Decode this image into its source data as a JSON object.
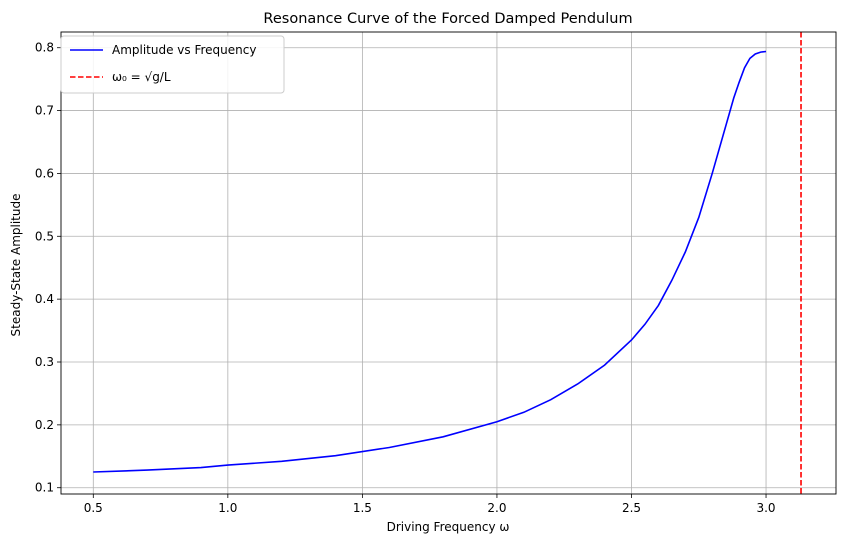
{
  "chart_data": {
    "type": "line",
    "title": "Resonance Curve of the Forced Damped Pendulum",
    "xlabel": "Driving Frequency ω",
    "ylabel": "Steady-State Amplitude",
    "xlim": [
      0.38,
      3.26
    ],
    "ylim": [
      0.09,
      0.825
    ],
    "xticks": [
      "0.5",
      "1.0",
      "1.5",
      "2.0",
      "2.5",
      "3.0"
    ],
    "yticks": [
      "0.1",
      "0.2",
      "0.3",
      "0.4",
      "0.5",
      "0.6",
      "0.7",
      "0.8"
    ],
    "grid": true,
    "legend_position": "top-left",
    "series": [
      {
        "name": "Amplitude vs Frequency",
        "color": "#0000ff",
        "style": "solid",
        "x": [
          0.5,
          0.7,
          0.9,
          1.0,
          1.2,
          1.4,
          1.6,
          1.8,
          2.0,
          2.1,
          2.2,
          2.3,
          2.4,
          2.5,
          2.55,
          2.6,
          2.65,
          2.7,
          2.75,
          2.8,
          2.85,
          2.88,
          2.9,
          2.92,
          2.94,
          2.96,
          2.98,
          3.0
        ],
        "y": [
          0.125,
          0.128,
          0.132,
          0.136,
          0.142,
          0.151,
          0.164,
          0.181,
          0.205,
          0.22,
          0.24,
          0.265,
          0.295,
          0.335,
          0.36,
          0.39,
          0.43,
          0.475,
          0.53,
          0.6,
          0.675,
          0.72,
          0.745,
          0.768,
          0.783,
          0.79,
          0.793,
          0.794
        ]
      }
    ],
    "reference_line": {
      "label": "ω₀ = √g/L",
      "x": 3.13,
      "color": "#ff0000",
      "style": "dashed"
    }
  }
}
